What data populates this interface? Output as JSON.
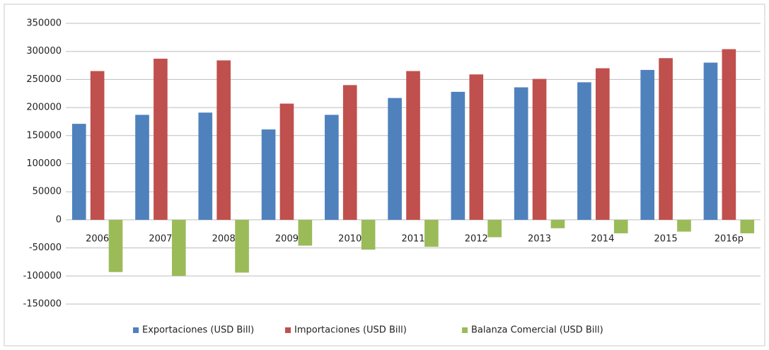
{
  "chart_data": {
    "type": "bar",
    "categories": [
      "2006",
      "2007",
      "2008",
      "2009",
      "2010",
      "2011",
      "2012",
      "2013",
      "2014",
      "2015",
      "2016p"
    ],
    "series": [
      {
        "name": "Exportaciones (USD Bill)",
        "color": "#4f81bd",
        "values": [
          171000,
          187000,
          191000,
          161000,
          187000,
          217000,
          228000,
          236000,
          245000,
          267000,
          280000
        ]
      },
      {
        "name": "Importaciones (USD Bill)",
        "color": "#c0504d",
        "values": [
          265000,
          287000,
          284000,
          207000,
          240000,
          265000,
          259000,
          251000,
          270000,
          288000,
          304000
        ]
      },
      {
        "name": "Balanza Comercial (USD Bill)",
        "color": "#9bbb59",
        "values": [
          -93000,
          -100000,
          -94000,
          -46000,
          -53000,
          -48000,
          -31000,
          -15000,
          -24000,
          -21000,
          -24000
        ]
      }
    ],
    "ylim": [
      -150000,
      350000
    ],
    "yticks": [
      -150000,
      -100000,
      -50000,
      0,
      50000,
      100000,
      150000,
      200000,
      250000,
      300000,
      350000
    ],
    "grid": true,
    "legend": "bottom"
  }
}
